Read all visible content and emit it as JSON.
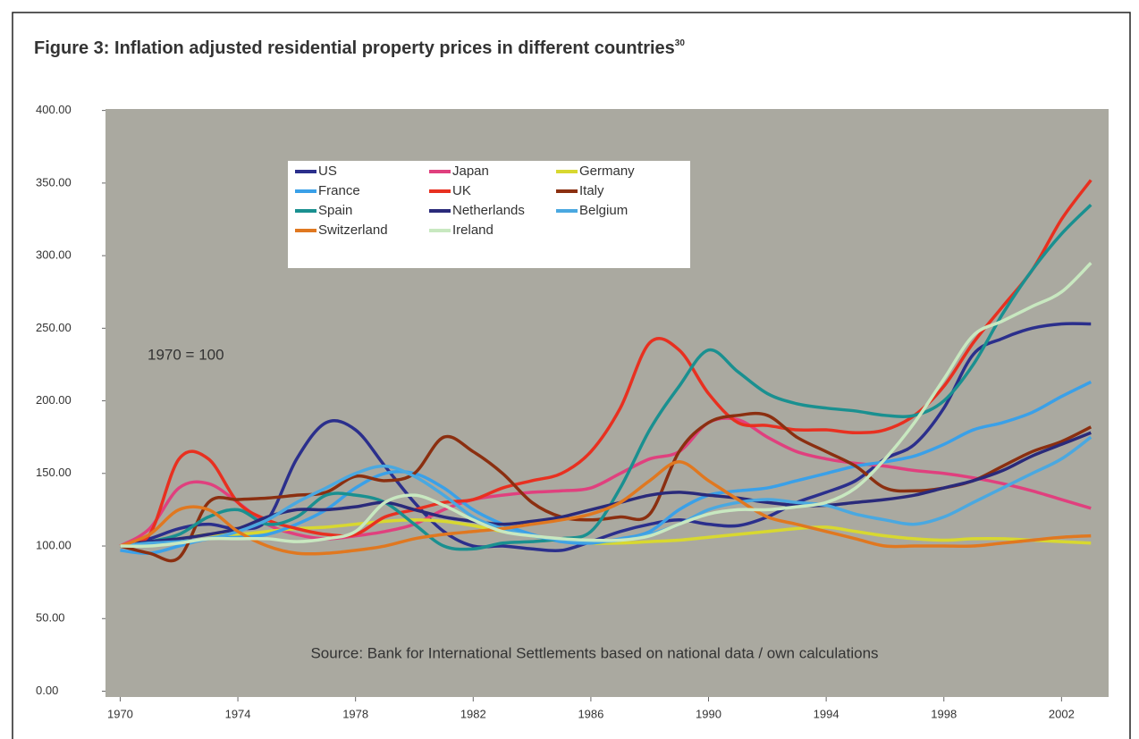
{
  "chart_data": {
    "type": "line",
    "title": "Figure 3: Inflation adjusted residential property prices in different countries",
    "title_superscript": "30",
    "annotations": [
      "1970 = 100",
      "Source: Bank for International Settlements based on national data / own calculations"
    ],
    "x": [
      1970,
      1971,
      1972,
      1973,
      1974,
      1975,
      1976,
      1977,
      1978,
      1979,
      1980,
      1981,
      1982,
      1983,
      1984,
      1985,
      1986,
      1987,
      1988,
      1989,
      1990,
      1991,
      1992,
      1993,
      1994,
      1995,
      1996,
      1997,
      1998,
      1999,
      2000,
      2001,
      2002,
      2003
    ],
    "xlim": [
      1969.5,
      2003.6
    ],
    "xticks": [
      1970,
      1974,
      1978,
      1982,
      1986,
      1990,
      1994,
      1998,
      2002
    ],
    "ylim": [
      -4,
      401
    ],
    "yticks": [
      {
        "value": 0,
        "label": "0.00"
      },
      {
        "value": 50,
        "label": "50.00"
      },
      {
        "value": 100,
        "label": "100.00"
      },
      {
        "value": 150,
        "label": "150.00"
      },
      {
        "value": 200,
        "label": "200.00"
      },
      {
        "value": 250,
        "label": "250.00"
      },
      {
        "value": 300,
        "label": "300.00"
      },
      {
        "value": 350,
        "label": "350.00"
      },
      {
        "value": 400,
        "label": "400.00"
      }
    ],
    "series": [
      {
        "name": "US",
        "color": "#2b2f8c",
        "values": [
          100,
          105,
          112,
          115,
          112,
          118,
          160,
          185,
          180,
          155,
          130,
          110,
          100,
          100,
          98,
          97,
          103,
          110,
          115,
          118,
          115,
          114,
          120,
          130,
          137,
          145,
          160,
          170,
          195,
          232,
          243,
          250,
          253,
          253
        ]
      },
      {
        "name": "Japan",
        "color": "#e0407e",
        "values": [
          100,
          112,
          140,
          143,
          130,
          115,
          108,
          105,
          107,
          110,
          115,
          125,
          132,
          135,
          137,
          138,
          140,
          150,
          160,
          165,
          185,
          187,
          175,
          165,
          160,
          157,
          155,
          152,
          150,
          147,
          143,
          138,
          132,
          126
        ]
      },
      {
        "name": "Germany",
        "color": "#d8d830",
        "values": [
          100,
          102,
          105,
          108,
          108,
          110,
          112,
          113,
          115,
          117,
          118,
          117,
          114,
          110,
          107,
          104,
          102,
          102,
          103,
          104,
          106,
          108,
          110,
          112,
          113,
          110,
          107,
          105,
          104,
          105,
          105,
          104,
          103,
          102
        ]
      },
      {
        "name": "France",
        "color": "#3aa0e8",
        "values": [
          97,
          95,
          100,
          105,
          106,
          108,
          115,
          125,
          140,
          150,
          150,
          140,
          125,
          115,
          108,
          103,
          102,
          105,
          110,
          125,
          135,
          138,
          140,
          145,
          150,
          155,
          158,
          162,
          170,
          180,
          185,
          192,
          203,
          213
        ]
      },
      {
        "name": "UK",
        "color": "#e83020",
        "values": [
          100,
          108,
          160,
          160,
          130,
          118,
          112,
          108,
          108,
          120,
          125,
          130,
          132,
          140,
          145,
          150,
          165,
          195,
          240,
          235,
          205,
          185,
          183,
          180,
          180,
          178,
          180,
          190,
          210,
          240,
          265,
          290,
          325,
          352
        ]
      },
      {
        "name": "Italy",
        "color": "#8b2f10",
        "values": [
          100,
          95,
          92,
          130,
          132,
          133,
          135,
          137,
          148,
          145,
          150,
          175,
          165,
          150,
          130,
          120,
          118,
          120,
          122,
          165,
          185,
          190,
          190,
          175,
          165,
          155,
          140,
          138,
          140,
          145,
          155,
          165,
          172,
          182
        ]
      },
      {
        "name": "Spain",
        "color": "#1a9090",
        "values": [
          100,
          103,
          108,
          120,
          125,
          115,
          120,
          135,
          135,
          130,
          115,
          100,
          98,
          102,
          103,
          105,
          110,
          140,
          180,
          210,
          235,
          220,
          205,
          198,
          195,
          193,
          190,
          190,
          200,
          225,
          260,
          290,
          315,
          335
        ]
      },
      {
        "name": "Netherlands",
        "color": "#2a2a7a",
        "values": [
          100,
          103,
          105,
          108,
          112,
          120,
          125,
          125,
          127,
          130,
          125,
          120,
          117,
          115,
          117,
          120,
          125,
          130,
          135,
          137,
          135,
          133,
          130,
          128,
          128,
          130,
          132,
          135,
          140,
          145,
          152,
          162,
          170,
          178
        ]
      },
      {
        "name": "Belgium",
        "color": "#4aa8e0",
        "values": [
          100,
          102,
          103,
          105,
          110,
          118,
          130,
          140,
          150,
          155,
          148,
          135,
          120,
          112,
          107,
          104,
          103,
          104,
          108,
          115,
          125,
          130,
          132,
          130,
          128,
          122,
          118,
          115,
          120,
          130,
          140,
          150,
          160,
          175
        ]
      },
      {
        "name": "Switzerland",
        "color": "#e07820",
        "values": [
          100,
          108,
          125,
          125,
          110,
          100,
          95,
          95,
          97,
          100,
          105,
          108,
          110,
          112,
          115,
          118,
          122,
          130,
          145,
          158,
          145,
          132,
          120,
          115,
          110,
          105,
          100,
          100,
          100,
          100,
          102,
          104,
          106,
          107
        ]
      },
      {
        "name": "Ireland",
        "color": "#c8e8c0",
        "values": [
          100,
          100,
          102,
          105,
          105,
          105,
          103,
          105,
          110,
          130,
          135,
          128,
          118,
          110,
          107,
          105,
          104,
          104,
          107,
          115,
          122,
          125,
          125,
          127,
          130,
          140,
          160,
          185,
          215,
          245,
          255,
          265,
          275,
          295
        ]
      }
    ]
  }
}
